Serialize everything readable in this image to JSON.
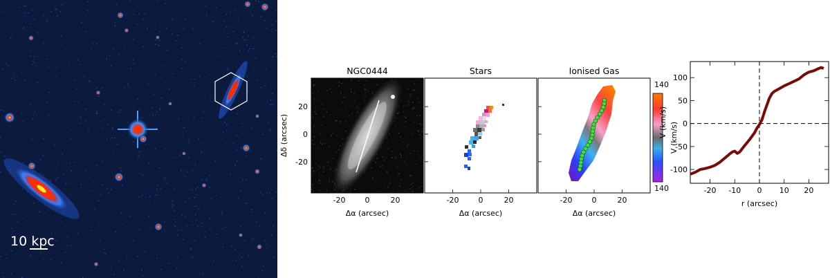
{
  "sky_image": {
    "scale_bar_label": "10 kpc"
  },
  "map_panels": {
    "y_axis_label": "Δδ (arcsec)",
    "x_axis_label": "Δα (arcsec)",
    "x_ticks": [
      "-20",
      "0",
      "20"
    ],
    "y_ticks": [
      "20",
      "0",
      "-20"
    ],
    "panels": [
      {
        "title": "NGC0444"
      },
      {
        "title": "Stars"
      },
      {
        "title": "Ionised Gas"
      }
    ],
    "colorbar": {
      "label": "V (km/s)",
      "top_label": "140",
      "bottom_label": "140"
    }
  },
  "chart_data": {
    "type": "line",
    "title": "",
    "xlabel": "r (arcsec)",
    "ylabel": "V (km/s)",
    "xlim": [
      -28,
      28
    ],
    "ylim": [
      -130,
      135
    ],
    "x_ticks": [
      -20,
      -10,
      0,
      10,
      20
    ],
    "y_ticks": [
      -100,
      -50,
      0,
      50,
      100
    ],
    "reference_lines": {
      "x": 0,
      "y": 0
    },
    "series": [
      {
        "color": "#7a0a0a",
        "x": [
          -28,
          -26,
          -24,
          -22,
          -20,
          -18,
          -16,
          -14,
          -12,
          -11,
          -10,
          -9,
          -8,
          -6,
          -4,
          -2,
          -1,
          0,
          1,
          2,
          3,
          4,
          5,
          6,
          8,
          10,
          12,
          14,
          16,
          18,
          20,
          22,
          24,
          25,
          26
        ],
        "y": [
          -110,
          -106,
          -100,
          -98,
          -95,
          -91,
          -84,
          -75,
          -66,
          -62,
          -60,
          -65,
          -62,
          -48,
          -35,
          -20,
          -10,
          -2,
          8,
          25,
          40,
          55,
          65,
          70,
          76,
          82,
          87,
          92,
          97,
          106,
          112,
          115,
          120,
          122,
          120
        ]
      }
    ]
  }
}
